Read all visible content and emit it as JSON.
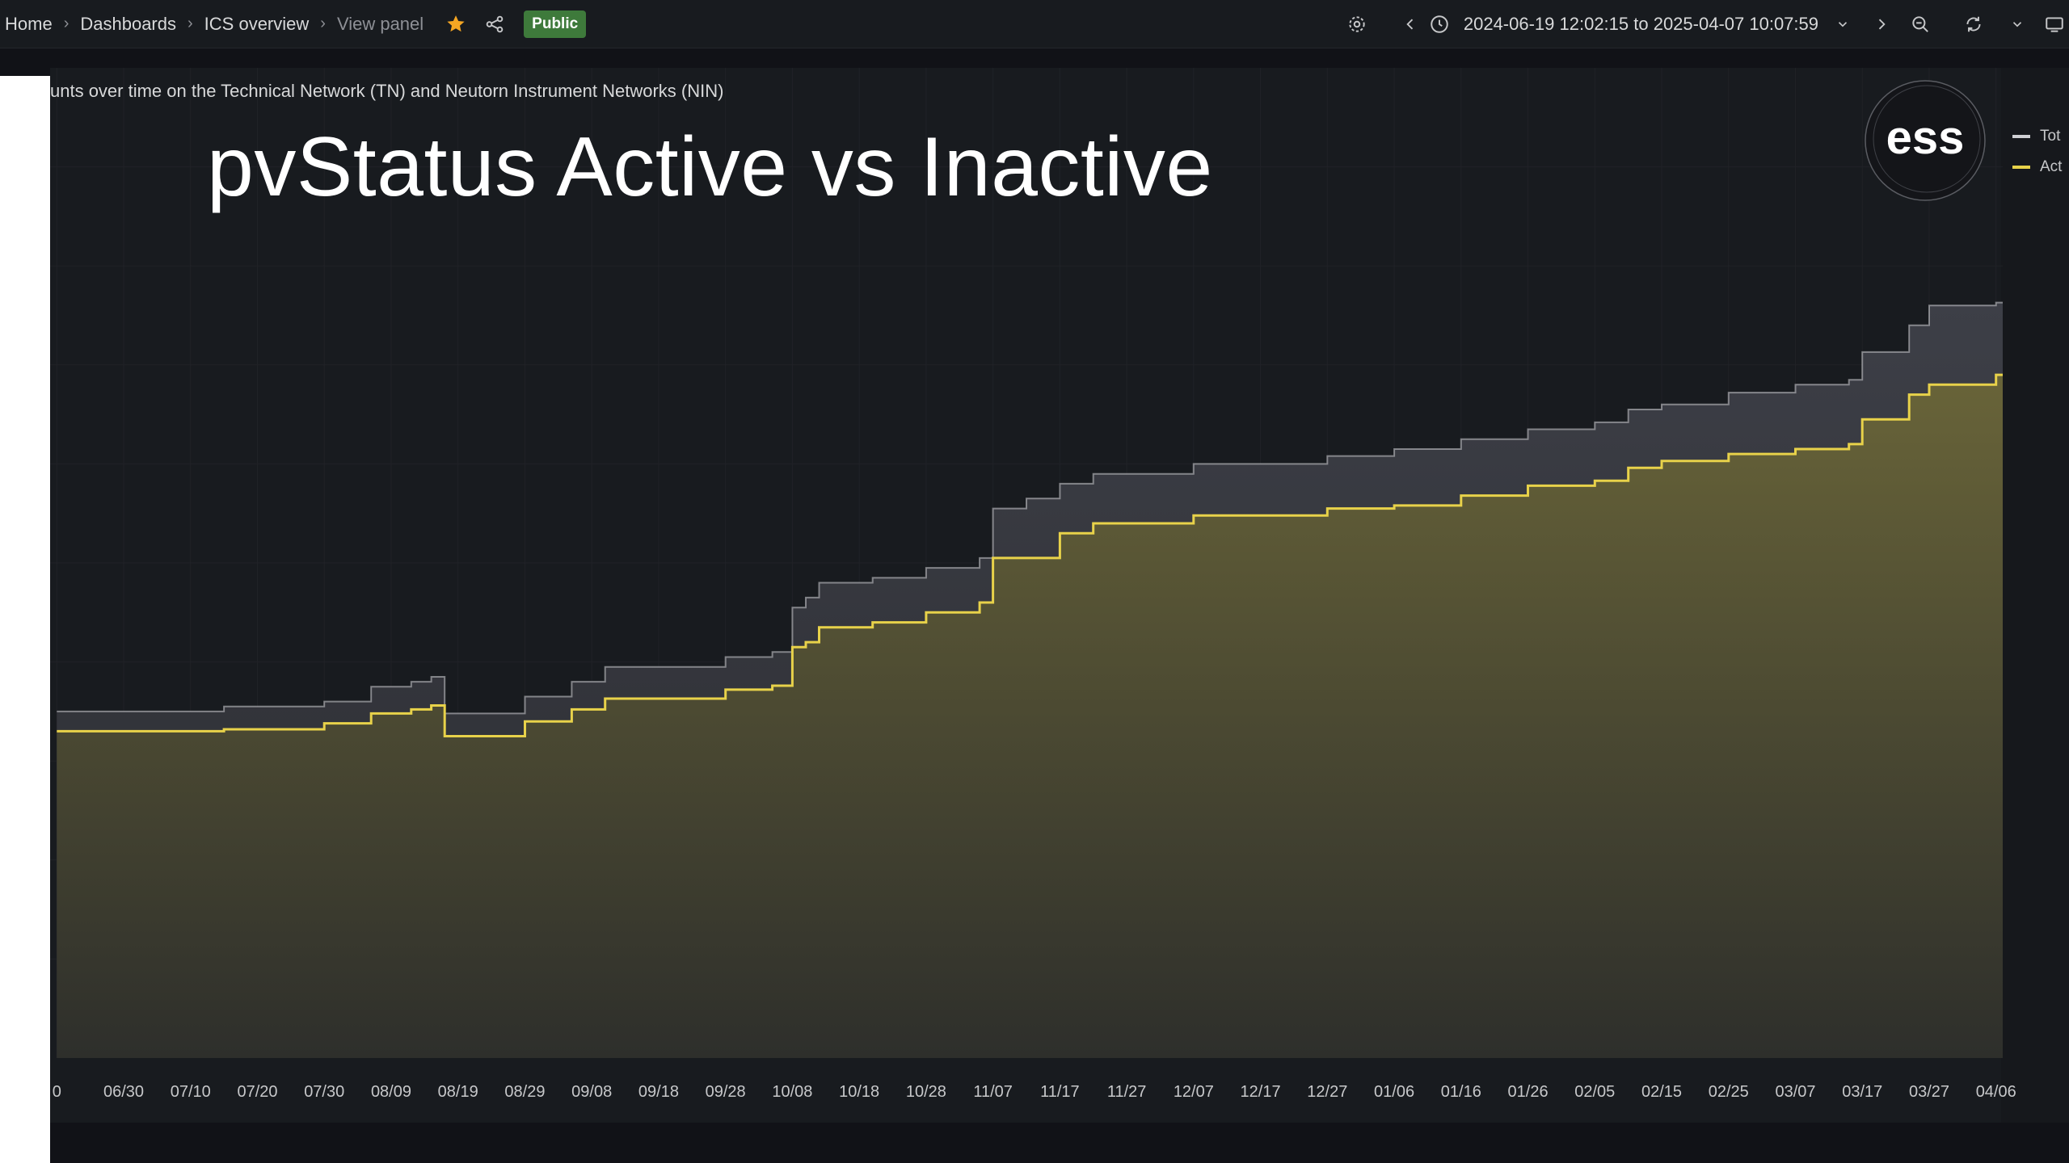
{
  "breadcrumbs": {
    "home": "Home",
    "dashboards": "Dashboards",
    "ics_overview": "ICS overview",
    "view_panel": "View panel",
    "public_badge": "Public"
  },
  "time_picker": {
    "range": "2024-06-19 12:02:15 to 2025-04-07 10:07:59"
  },
  "panel": {
    "description": "unts over time on the Technical Network (TN) and Neutorn Instrument Networks (NIN)",
    "logo_text": "ess"
  },
  "legend": [
    {
      "label": "Tot",
      "color": "#cfd0d4"
    },
    {
      "label": "Act",
      "color": "#e8d24a"
    }
  ],
  "colors": {
    "active_series": "#e8d24a",
    "total_series": "#cfd0d4",
    "badge": "#3e7a3b",
    "star": "#f5a623"
  },
  "icons": [
    "star-icon",
    "share-icon",
    "settings-icon",
    "chevron-left-icon",
    "clock-icon",
    "chevron-down-icon",
    "chevron-right-icon",
    "zoom-out-icon",
    "refresh-icon",
    "tv-icon"
  ],
  "chart_data": {
    "type": "area",
    "title": "pvStatus Active vs Inactive",
    "xlabel": "",
    "ylabel": "",
    "x_ticks": [
      "0",
      "06/30",
      "07/10",
      "07/20",
      "07/30",
      "08/09",
      "08/19",
      "08/29",
      "09/08",
      "09/18",
      "09/28",
      "10/08",
      "10/18",
      "10/28",
      "11/07",
      "11/17",
      "11/27",
      "12/07",
      "12/17",
      "12/27",
      "01/06",
      "01/16",
      "01/26",
      "02/05",
      "02/15",
      "02/25",
      "03/07",
      "03/17",
      "03/27",
      "04/06"
    ],
    "ylim": [
      0,
      100
    ],
    "grid": true,
    "legend_position": "top-right",
    "series": [
      {
        "name": "Tot",
        "x": [
          "06/20",
          "07/15",
          "07/30",
          "08/06",
          "08/12",
          "08/15",
          "08/17",
          "08/29",
          "09/05",
          "09/10",
          "09/28",
          "10/05",
          "10/08",
          "10/10",
          "10/12",
          "10/20",
          "10/28",
          "11/05",
          "11/07",
          "11/12",
          "11/17",
          "11/22",
          "12/07",
          "12/27",
          "01/06",
          "01/16",
          "01/26",
          "02/05",
          "02/10",
          "02/15",
          "02/25",
          "03/07",
          "03/15",
          "03/17",
          "03/24",
          "03/27",
          "04/06"
        ],
        "values": [
          35.0,
          35.5,
          36.0,
          37.5,
          38.0,
          38.5,
          34.8,
          36.5,
          38.0,
          39.5,
          40.5,
          41.0,
          45.5,
          46.5,
          48.0,
          48.5,
          49.5,
          50.5,
          55.5,
          56.5,
          58.0,
          59.0,
          60.0,
          60.8,
          61.5,
          62.5,
          63.5,
          64.2,
          65.5,
          66.0,
          67.2,
          68.0,
          68.5,
          71.3,
          74.0,
          76.0,
          76.3
        ]
      },
      {
        "name": "Act",
        "x": [
          "06/20",
          "07/15",
          "07/30",
          "08/06",
          "08/12",
          "08/15",
          "08/17",
          "08/29",
          "09/05",
          "09/10",
          "09/28",
          "10/05",
          "10/08",
          "10/10",
          "10/12",
          "10/20",
          "10/28",
          "11/05",
          "11/07",
          "11/17",
          "11/22",
          "12/07",
          "12/27",
          "01/06",
          "01/16",
          "01/26",
          "02/05",
          "02/10",
          "02/15",
          "02/25",
          "03/07",
          "03/15",
          "03/17",
          "03/24",
          "03/27",
          "04/06"
        ],
        "values": [
          33.0,
          33.2,
          33.8,
          34.8,
          35.2,
          35.6,
          32.5,
          34.0,
          35.2,
          36.3,
          37.2,
          37.6,
          41.5,
          42.0,
          43.5,
          44.0,
          45.0,
          46.0,
          50.5,
          53.0,
          54.0,
          54.8,
          55.5,
          55.8,
          56.8,
          57.8,
          58.3,
          59.6,
          60.3,
          61.0,
          61.5,
          62.0,
          64.5,
          67.0,
          68.0,
          69.0
        ]
      }
    ]
  }
}
